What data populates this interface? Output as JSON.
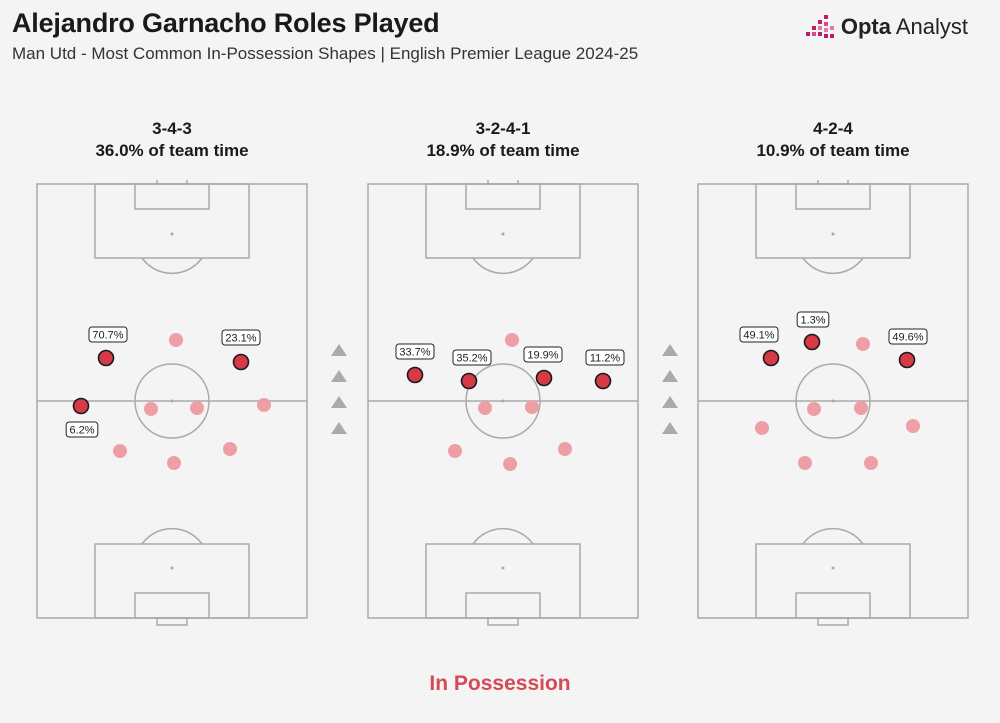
{
  "header": {
    "title": "Alejandro Garnacho Roles Played",
    "subtitle": "Man Utd - Most Common In-Possession Shapes | English Premier League 2024-25"
  },
  "brand": {
    "name_bold": "Opta",
    "name_rest": " Analyst",
    "icon": "opta-logo-icon",
    "accent": "#c21a6b"
  },
  "colors": {
    "active": "#d63a47",
    "inactive": "#ee9fa6",
    "pitch_line": "#aaaaaa",
    "arrow": "#aaaaaa"
  },
  "pitches": [
    {
      "formation": "3-4-3",
      "share": "36.0% of team time",
      "positions": [
        {
          "label": "70.7%",
          "active": true
        },
        {
          "label": "23.1%",
          "active": true
        },
        {
          "label": "6.2%",
          "active": true
        },
        {
          "label": "",
          "active": false
        },
        {
          "label": "",
          "active": false
        },
        {
          "label": "",
          "active": false
        },
        {
          "label": "",
          "active": false
        },
        {
          "label": "",
          "active": false
        },
        {
          "label": "",
          "active": false
        },
        {
          "label": "",
          "active": false
        }
      ]
    },
    {
      "formation": "3-2-4-1",
      "share": "18.9% of team time",
      "positions": [
        {
          "label": "33.7%",
          "active": true
        },
        {
          "label": "35.2%",
          "active": true
        },
        {
          "label": "19.9%",
          "active": true
        },
        {
          "label": "11.2%",
          "active": true
        },
        {
          "label": "",
          "active": false
        },
        {
          "label": "",
          "active": false
        },
        {
          "label": "",
          "active": false
        },
        {
          "label": "",
          "active": false
        },
        {
          "label": "",
          "active": false
        },
        {
          "label": "",
          "active": false
        }
      ]
    },
    {
      "formation": "4-2-4",
      "share": "10.9% of team time",
      "positions": [
        {
          "label": "49.1%",
          "active": true
        },
        {
          "label": "1.3%",
          "active": true
        },
        {
          "label": "49.6%",
          "active": true
        },
        {
          "label": "",
          "active": false
        },
        {
          "label": "",
          "active": false
        },
        {
          "label": "",
          "active": false
        },
        {
          "label": "",
          "active": false
        },
        {
          "label": "",
          "active": false
        },
        {
          "label": "",
          "active": false
        },
        {
          "label": "",
          "active": false
        }
      ]
    }
  ],
  "footer": {
    "label": "In Possession"
  }
}
